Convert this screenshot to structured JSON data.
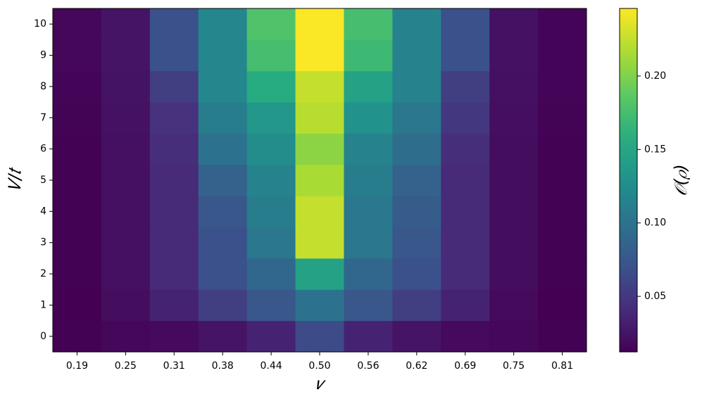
{
  "chart_data": {
    "type": "heatmap",
    "xlabel": "𝜈",
    "ylabel": "𝑉/𝑡",
    "colorbar_label": "𝒪(𝜌)",
    "categories": [
      "0.19",
      "0.25",
      "0.31",
      "0.38",
      "0.44",
      "0.50",
      "0.56",
      "0.62",
      "0.69",
      "0.75",
      "0.81"
    ],
    "y": [
      0,
      1,
      2,
      3,
      4,
      5,
      6,
      7,
      8,
      9,
      10
    ],
    "colormap": "viridis",
    "clim": [
      0.0122,
      0.246
    ],
    "cticks": [
      0.05,
      {
        "value": 0.1,
        "label": "0.10"
      },
      0.15,
      {
        "value": 0.2,
        "label": "0.20"
      }
    ],
    "z": [
      [
        0.013,
        0.016,
        0.018,
        0.025,
        0.035,
        0.065,
        0.035,
        0.025,
        0.018,
        0.016,
        0.013
      ],
      [
        0.012,
        0.02,
        0.035,
        0.055,
        0.075,
        0.1,
        0.075,
        0.055,
        0.035,
        0.018,
        0.012
      ],
      [
        0.013,
        0.022,
        0.04,
        0.07,
        0.09,
        0.145,
        0.09,
        0.07,
        0.04,
        0.02,
        0.013
      ],
      [
        0.013,
        0.022,
        0.04,
        0.07,
        0.105,
        0.225,
        0.105,
        0.075,
        0.04,
        0.02,
        0.013
      ],
      [
        0.013,
        0.022,
        0.04,
        0.075,
        0.11,
        0.225,
        0.105,
        0.08,
        0.04,
        0.02,
        0.013
      ],
      [
        0.013,
        0.022,
        0.04,
        0.085,
        0.115,
        0.215,
        0.11,
        0.085,
        0.04,
        0.02,
        0.013
      ],
      [
        0.013,
        0.022,
        0.042,
        0.1,
        0.125,
        0.205,
        0.115,
        0.095,
        0.042,
        0.02,
        0.013
      ],
      [
        0.014,
        0.023,
        0.045,
        0.11,
        0.135,
        0.22,
        0.13,
        0.105,
        0.05,
        0.021,
        0.014
      ],
      [
        0.015,
        0.024,
        0.055,
        0.12,
        0.155,
        0.225,
        0.145,
        0.115,
        0.055,
        0.022,
        0.015
      ],
      [
        0.016,
        0.025,
        0.07,
        0.12,
        0.175,
        0.245,
        0.17,
        0.115,
        0.07,
        0.023,
        0.015
      ],
      [
        0.016,
        0.025,
        0.07,
        0.12,
        0.18,
        0.245,
        0.175,
        0.115,
        0.07,
        0.023,
        0.015
      ]
    ]
  }
}
